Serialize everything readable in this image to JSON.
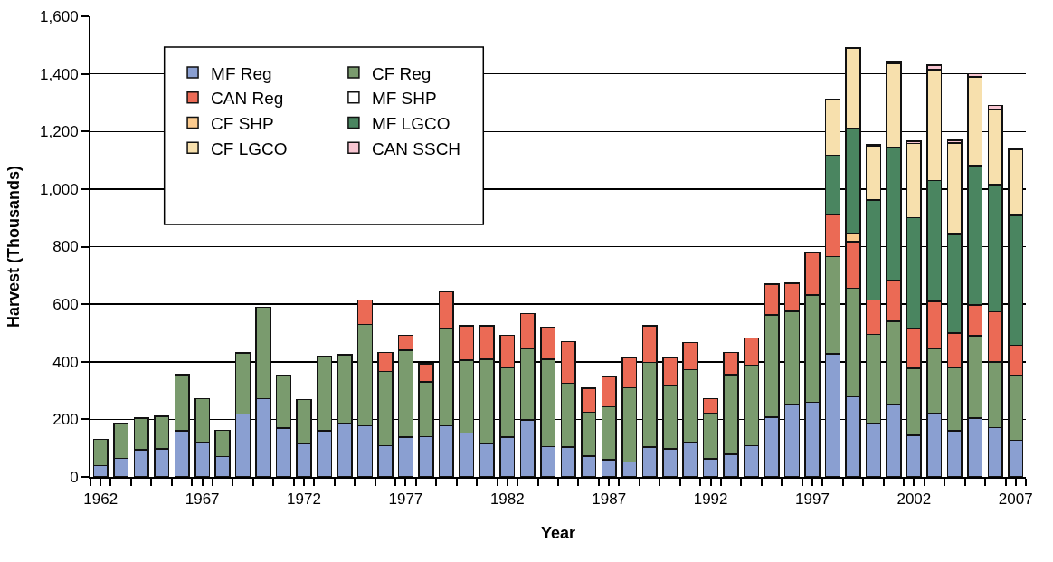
{
  "chart_data": {
    "type": "bar",
    "stacked": true,
    "xlabel": "Year",
    "ylabel": "Harvest (Thousands)",
    "categories": [
      "1962",
      null,
      null,
      null,
      null,
      "1967",
      null,
      null,
      null,
      null,
      "1972",
      null,
      null,
      null,
      null,
      "1977",
      null,
      null,
      null,
      null,
      "1982",
      null,
      null,
      null,
      null,
      "1987",
      null,
      null,
      null,
      null,
      "1992",
      null,
      null,
      null,
      null,
      "1997",
      null,
      null,
      null,
      null,
      "2002",
      null,
      null,
      null,
      null,
      "2007"
    ],
    "ylim": [
      0,
      1600
    ],
    "yticks": [
      0,
      {
        "value": 200,
        "label": "200"
      },
      {
        "value": 400,
        "label": "400"
      },
      {
        "value": 600,
        "label": "600"
      },
      {
        "value": 800,
        "label": "800"
      },
      {
        "value": 1000,
        "label": "1,000"
      },
      {
        "value": 1200,
        "label": "1,200"
      },
      {
        "value": 1400,
        "label": "1,400"
      },
      {
        "value": 1600,
        "label": "1,600"
      }
    ],
    "grid": "y",
    "legend": "top left",
    "series": [
      {
        "name": "MF Reg",
        "color": "#8a9fd1",
        "values": [
          40,
          65,
          95,
          97,
          160,
          120,
          70,
          218,
          272,
          170,
          115,
          160,
          185,
          178,
          108,
          138,
          140,
          178,
          153,
          115,
          138,
          198,
          105,
          103,
          72,
          60,
          52,
          103,
          98,
          120,
          63,
          78,
          108,
          207,
          252,
          260,
          428,
          278,
          185,
          252,
          145,
          222,
          160,
          205,
          172,
          127
        ]
      },
      {
        "name": "CF Reg",
        "color": "#7a9b6e",
        "values": [
          90,
          120,
          110,
          113,
          195,
          152,
          92,
          212,
          318,
          182,
          153,
          258,
          240,
          352,
          259,
          302,
          190,
          337,
          252,
          293,
          242,
          247,
          303,
          222,
          153,
          183,
          258,
          295,
          220,
          253,
          159,
          277,
          280,
          355,
          323,
          372,
          337,
          377,
          310,
          288,
          232,
          223,
          220,
          285,
          228,
          226
        ]
      },
      {
        "name": "CAN Reg",
        "color": "#eb6a55",
        "values": [
          null,
          null,
          null,
          null,
          null,
          null,
          null,
          null,
          null,
          null,
          null,
          null,
          null,
          85,
          66,
          52,
          63,
          128,
          120,
          117,
          112,
          122,
          112,
          145,
          83,
          104,
          105,
          127,
          97,
          94,
          50,
          77,
          95,
          108,
          97,
          148,
          147,
          160,
          120,
          142,
          140,
          165,
          120,
          107,
          173,
          104
        ]
      },
      {
        "name": "MF SHP",
        "color": "#ffffff",
        "values": [
          null,
          null,
          null,
          null,
          null,
          null,
          null,
          null,
          null,
          null,
          null,
          null,
          null,
          null,
          null,
          null,
          null,
          null,
          null,
          null,
          null,
          null,
          null,
          null,
          null,
          null,
          null,
          null,
          null,
          null,
          null,
          null,
          null,
          null,
          null,
          null,
          null,
          3,
          null,
          null,
          null,
          null,
          null,
          null,
          null,
          null
        ]
      },
      {
        "name": "CF SHP",
        "color": "#fccb8e",
        "values": [
          null,
          null,
          null,
          null,
          null,
          null,
          null,
          null,
          null,
          null,
          null,
          null,
          null,
          null,
          null,
          null,
          null,
          null,
          null,
          null,
          null,
          null,
          null,
          null,
          null,
          null,
          null,
          null,
          null,
          null,
          null,
          null,
          null,
          null,
          null,
          null,
          null,
          27,
          null,
          null,
          null,
          null,
          null,
          null,
          null,
          null
        ]
      },
      {
        "name": "MF LGCO",
        "color": "#4a8560",
        "values": [
          null,
          null,
          null,
          null,
          null,
          null,
          null,
          null,
          null,
          null,
          null,
          null,
          null,
          null,
          null,
          null,
          null,
          null,
          null,
          null,
          null,
          null,
          null,
          null,
          null,
          null,
          null,
          null,
          null,
          null,
          null,
          null,
          null,
          null,
          null,
          null,
          206,
          365,
          347,
          463,
          383,
          420,
          342,
          485,
          442,
          451
        ]
      },
      {
        "name": "CF LGCO",
        "color": "#f7e0ad",
        "values": [
          null,
          null,
          null,
          null,
          null,
          null,
          null,
          null,
          null,
          null,
          null,
          null,
          null,
          null,
          null,
          null,
          null,
          null,
          null,
          null,
          null,
          null,
          null,
          null,
          null,
          null,
          null,
          null,
          null,
          null,
          null,
          null,
          null,
          null,
          null,
          null,
          194,
          280,
          188,
          292,
          258,
          385,
          318,
          308,
          263,
          230
        ]
      },
      {
        "name": "CAN SSCH",
        "color": "#f8c6d2",
        "values": [
          null,
          null,
          null,
          null,
          null,
          null,
          null,
          null,
          null,
          null,
          null,
          null,
          null,
          null,
          null,
          null,
          null,
          null,
          null,
          null,
          null,
          null,
          null,
          null,
          null,
          null,
          null,
          null,
          null,
          null,
          null,
          null,
          null,
          null,
          null,
          null,
          null,
          null,
          5,
          6,
          9,
          15,
          10,
          10,
          12,
          4
        ]
      }
    ]
  }
}
